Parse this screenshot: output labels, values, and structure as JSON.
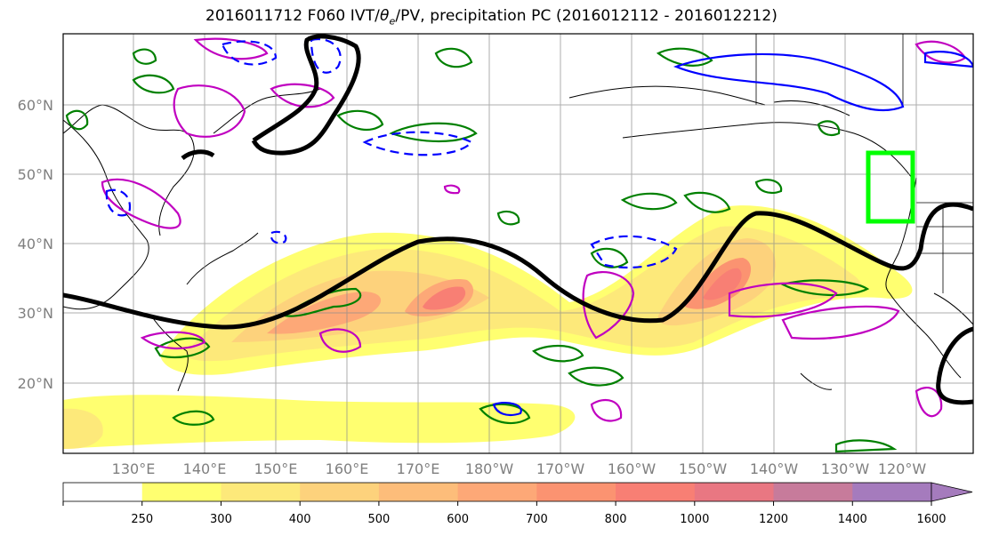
{
  "title_prefix": "2016011712 F060 IVT/",
  "title_theta": "θ",
  "title_sub": "e",
  "title_suffix": "/PV, precipitation PC (2016012112 - 2016012212)",
  "lat_labels": [
    "60°N",
    "50°N",
    "40°N",
    "30°N",
    "20°N"
  ],
  "lon_labels": [
    "130°E",
    "140°E",
    "150°E",
    "160°E",
    "170°E",
    "180°W",
    "170°W",
    "160°W",
    "150°W",
    "140°W",
    "130°W",
    "120°W"
  ],
  "colorbar": {
    "ticks": [
      "250",
      "300",
      "400",
      "500",
      "600",
      "700",
      "800",
      "1000",
      "1200",
      "1400",
      "1600"
    ],
    "colors": [
      "#ffffff",
      "#ffff70",
      "#fde97a",
      "#fdd27c",
      "#fdbd7a",
      "#fda877",
      "#fb9371",
      "#f87f74",
      "#e97782",
      "#c77b9b",
      "#a57bbd",
      "#a57bbd"
    ]
  },
  "colors": {
    "jet_line": "#000000",
    "theta_e_contour": "#008000",
    "pv_positive": "#c000c0",
    "pv_negative": "#0000ff",
    "target_box": "#00ff00",
    "grid": "#8c8c8c"
  }
}
